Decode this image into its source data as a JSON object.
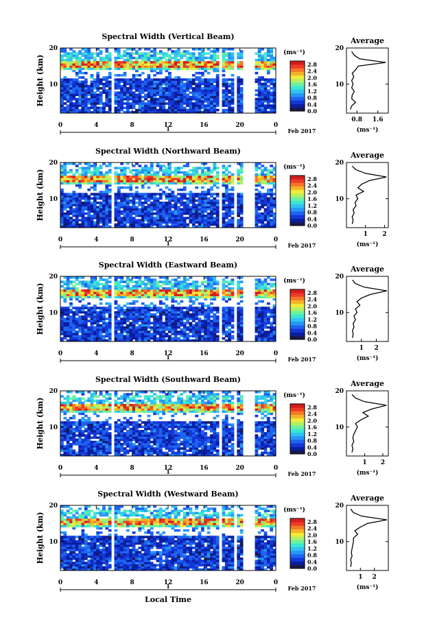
{
  "figure": {
    "x_label": "Local Time",
    "date_label": "Feb 2017",
    "day_label": "1",
    "avg_title": "Average",
    "colorbar_unit": "(ms⁻¹)",
    "avg_xlabel": "(ms⁻¹)",
    "ylabel": "Height (km)"
  },
  "colors": {
    "scale": [
      "#1a1a4a",
      "#0a1ea0",
      "#1438d8",
      "#1e64f0",
      "#2896f5",
      "#32c3f0",
      "#3ce6d2",
      "#6ef0a0",
      "#b4f064",
      "#f0eb3c",
      "#f5b428",
      "#f57828",
      "#ec3c28",
      "#d21e1e"
    ]
  },
  "chart_data": [
    {
      "type": "heatmap",
      "title": "Spectral Width (Vertical Beam)",
      "x_ticks": [
        "0",
        "4",
        "8",
        "12",
        "16",
        "20",
        "0"
      ],
      "y_ticks": [
        "10",
        "20"
      ],
      "colorbar_ticks": [
        "0.0",
        "0.4",
        "0.8",
        "1.2",
        "1.6",
        "2.0",
        "2.4",
        "2.8"
      ],
      "xlim": [
        0,
        24
      ],
      "ylim": [
        2,
        20
      ],
      "clim": [
        0,
        3.0
      ],
      "avg_x_ticks": [
        "0.8",
        "1.6"
      ],
      "avg_xlim": [
        0.4,
        2.0
      ],
      "avg_profile": {
        "height": [
          3,
          4,
          5,
          6,
          7,
          8,
          9,
          10,
          11,
          12,
          13,
          14,
          15,
          16,
          17,
          18,
          19
        ],
        "value": [
          0.55,
          0.6,
          0.75,
          0.6,
          0.62,
          0.7,
          0.6,
          0.65,
          0.6,
          0.68,
          0.62,
          0.75,
          0.85,
          1.9,
          0.9,
          0.7,
          0.6
        ]
      }
    },
    {
      "type": "heatmap",
      "title": "Spectral Width (Northward Beam)",
      "x_ticks": [
        "0",
        "4",
        "8",
        "12",
        "16",
        "20",
        "0"
      ],
      "y_ticks": [
        "10",
        "20"
      ],
      "colorbar_ticks": [
        "0.0",
        "0.4",
        "0.8",
        "1.2",
        "1.6",
        "2.0",
        "2.4",
        "2.8"
      ],
      "xlim": [
        0,
        24
      ],
      "ylim": [
        2,
        20
      ],
      "clim": [
        0,
        3.0
      ],
      "avg_x_ticks": [
        "1",
        "2"
      ],
      "avg_xlim": [
        0,
        2.2
      ],
      "avg_profile": {
        "height": [
          3,
          4,
          5,
          6,
          7,
          8,
          9,
          10,
          11,
          12,
          13,
          14,
          15,
          16,
          17,
          18,
          19
        ],
        "value": [
          0.3,
          0.35,
          0.3,
          0.4,
          0.35,
          0.5,
          0.45,
          0.6,
          0.5,
          0.9,
          0.6,
          0.8,
          1.2,
          2.1,
          1.0,
          0.5,
          0.3
        ]
      }
    },
    {
      "type": "heatmap",
      "title": "Spectral Width (Eastward Beam)",
      "x_ticks": [
        "0",
        "4",
        "8",
        "12",
        "16",
        "20",
        "0"
      ],
      "y_ticks": [
        "10",
        "20"
      ],
      "colorbar_ticks": [
        "0.0",
        "0.4",
        "0.8",
        "1.2",
        "1.6",
        "2.0",
        "2.4",
        "2.8"
      ],
      "xlim": [
        0,
        24
      ],
      "ylim": [
        2,
        20
      ],
      "clim": [
        0,
        3.0
      ],
      "avg_x_ticks": [
        "1",
        "2"
      ],
      "avg_xlim": [
        0,
        2.8
      ],
      "avg_profile": {
        "height": [
          3,
          4,
          5,
          6,
          7,
          8,
          9,
          10,
          11,
          12,
          13,
          14,
          15,
          16,
          17,
          18,
          19
        ],
        "value": [
          0.4,
          0.45,
          0.4,
          0.5,
          0.45,
          0.6,
          0.5,
          0.7,
          0.6,
          0.9,
          0.7,
          1.0,
          1.6,
          2.7,
          1.2,
          0.6,
          0.4
        ]
      }
    },
    {
      "type": "heatmap",
      "title": "Spectral Width (Southward Beam)",
      "x_ticks": [
        "0",
        "4",
        "8",
        "12",
        "16",
        "20",
        "0"
      ],
      "y_ticks": [
        "10",
        "20"
      ],
      "colorbar_ticks": [
        "0.0",
        "0.4",
        "0.8",
        "1.2",
        "1.6",
        "2.0",
        "2.4",
        "2.8"
      ],
      "xlim": [
        0,
        24
      ],
      "ylim": [
        2,
        20
      ],
      "clim": [
        0,
        3.0
      ],
      "avg_x_ticks": [
        "1",
        "2"
      ],
      "avg_xlim": [
        0,
        2.3
      ],
      "avg_profile": {
        "height": [
          3,
          4,
          5,
          6,
          7,
          8,
          9,
          10,
          11,
          12,
          13,
          14,
          15,
          16,
          17,
          18,
          19
        ],
        "value": [
          0.3,
          0.35,
          0.3,
          0.4,
          0.35,
          0.4,
          0.5,
          0.6,
          0.5,
          0.8,
          1.2,
          0.9,
          1.4,
          2.2,
          1.0,
          0.5,
          0.3
        ]
      }
    },
    {
      "type": "heatmap",
      "title": "Spectral Width (Westward Beam)",
      "x_ticks": [
        "0",
        "4",
        "8",
        "12",
        "16",
        "20",
        "0"
      ],
      "y_ticks": [
        "10",
        "20"
      ],
      "colorbar_ticks": [
        "0.0",
        "0.4",
        "0.8",
        "1.2",
        "1.6",
        "2.0",
        "2.4",
        "2.8"
      ],
      "xlim": [
        0,
        24
      ],
      "ylim": [
        2,
        20
      ],
      "clim": [
        0,
        3.0
      ],
      "avg_x_ticks": [
        "1",
        "2"
      ],
      "avg_xlim": [
        0,
        3.0
      ],
      "avg_profile": {
        "height": [
          3,
          4,
          5,
          6,
          7,
          8,
          9,
          10,
          11,
          12,
          13,
          14,
          15,
          16,
          17,
          18,
          19
        ],
        "value": [
          0.3,
          0.35,
          0.3,
          0.4,
          0.35,
          0.4,
          0.45,
          0.5,
          0.5,
          0.8,
          0.6,
          1.0,
          1.5,
          2.9,
          1.1,
          0.5,
          0.3
        ]
      }
    }
  ]
}
